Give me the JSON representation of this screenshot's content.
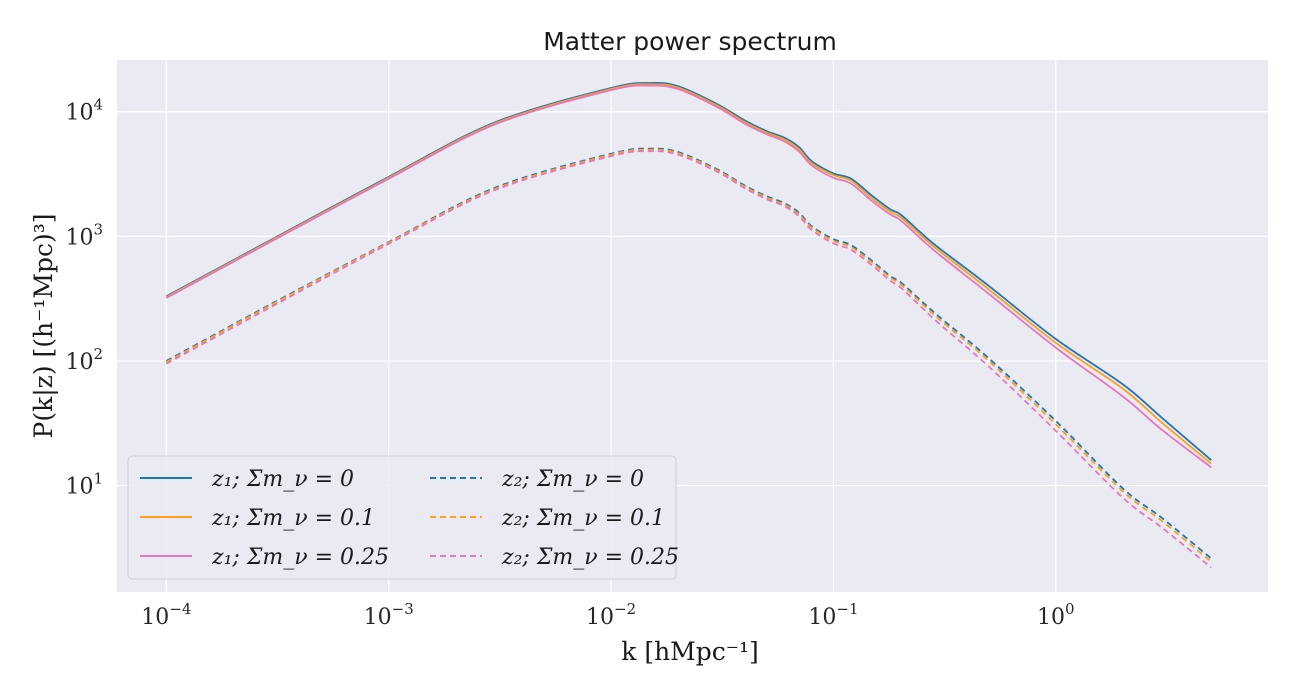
{
  "chart_data": {
    "type": "line",
    "title": "Matter power spectrum",
    "xlabel": "k [hMpc⁻¹]",
    "ylabel": "P(k|z) [(h⁻¹Mpc)³]",
    "xscale": "log",
    "yscale": "log",
    "xlim": [
      6e-05,
      9
    ],
    "ylim": [
      1.4,
      26000
    ],
    "grid": true,
    "background": "#eaeaf2",
    "legend": {
      "placement": "lower-left",
      "columns": 2
    },
    "x_ticks": [
      {
        "base": "10",
        "exp": "−4",
        "value": 0.0001
      },
      {
        "base": "10",
        "exp": "−3",
        "value": 0.001
      },
      {
        "base": "10",
        "exp": "−2",
        "value": 0.01
      },
      {
        "base": "10",
        "exp": "−1",
        "value": 0.1
      },
      {
        "base": "10",
        "exp": "0",
        "value": 1
      }
    ],
    "y_ticks": [
      {
        "base": "10",
        "exp": "1",
        "value": 10
      },
      {
        "base": "10",
        "exp": "2",
        "value": 100
      },
      {
        "base": "10",
        "exp": "3",
        "value": 1000
      },
      {
        "base": "10",
        "exp": "4",
        "value": 10000
      }
    ],
    "x": [
      0.0001,
      0.0003,
      0.001,
      0.003,
      0.01,
      0.015,
      0.02,
      0.03,
      0.04,
      0.05,
      0.06,
      0.07,
      0.08,
      0.1,
      0.12,
      0.15,
      0.18,
      0.2,
      0.25,
      0.3,
      0.5,
      1.0,
      2.0,
      3.0,
      5.0
    ],
    "series": [
      {
        "name": "z₁; Σm_ν = 0",
        "color": "#1f77b4",
        "dash": "solid",
        "values": [
          330,
          950,
          3000,
          8200,
          15500,
          17000,
          16000,
          11500,
          8500,
          7000,
          6200,
          5200,
          4000,
          3200,
          2900,
          2100,
          1650,
          1500,
          1050,
          800,
          400,
          150,
          65,
          35,
          16
        ]
      },
      {
        "name": "z₁; Σm_ν = 0.1",
        "color": "#ff9f1c",
        "dash": "solid",
        "values": [
          325,
          935,
          2950,
          8050,
          15200,
          16600,
          15600,
          11200,
          8250,
          6800,
          6000,
          5000,
          3850,
          3100,
          2800,
          2000,
          1580,
          1430,
          1000,
          760,
          375,
          140,
          60,
          32,
          15
        ]
      },
      {
        "name": "z₁; Σm_ν = 0.25",
        "color": "#e377c2",
        "dash": "solid",
        "values": [
          320,
          920,
          2900,
          7900,
          14900,
          16200,
          15200,
          10900,
          8000,
          6600,
          5800,
          4800,
          3700,
          2950,
          2650,
          1900,
          1500,
          1350,
          940,
          710,
          345,
          128,
          52,
          28,
          14
        ]
      },
      {
        "name": "z₂; Σm_ν = 0",
        "color": "#1f77b4",
        "dash": "dashed",
        "values": [
          100,
          290,
          900,
          2450,
          4600,
          5050,
          4750,
          3450,
          2550,
          2100,
          1850,
          1550,
          1200,
          950,
          850,
          630,
          480,
          430,
          300,
          225,
          105,
          33,
          9.5,
          5.5,
          2.6
        ]
      },
      {
        "name": "z₂; Σm_ν = 0.1",
        "color": "#ff9f1c",
        "dash": "dashed",
        "values": [
          98,
          285,
          890,
          2400,
          4520,
          4950,
          4650,
          3380,
          2500,
          2050,
          1800,
          1500,
          1170,
          920,
          820,
          610,
          465,
          415,
          288,
          215,
          100,
          31,
          9.0,
          5.2,
          2.45
        ]
      },
      {
        "name": "z₂; Σm_ν = 0.25",
        "color": "#e377c2",
        "dash": "dashed",
        "values": [
          95,
          275,
          870,
          2350,
          4400,
          4820,
          4520,
          3300,
          2430,
          1990,
          1750,
          1450,
          1120,
          880,
          780,
          580,
          440,
          390,
          268,
          198,
          90,
          27.5,
          8.0,
          4.6,
          2.2
        ]
      }
    ]
  },
  "legend_labels": {
    "l0": "z₁; Σm_ν = 0",
    "l1": "z₁; Σm_ν = 0.1",
    "l2": "z₁; Σm_ν = 0.25",
    "l3": "z₂; Σm_ν = 0",
    "l4": "z₂; Σm_ν = 0.1",
    "l5": "z₂; Σm_ν = 0.25"
  }
}
